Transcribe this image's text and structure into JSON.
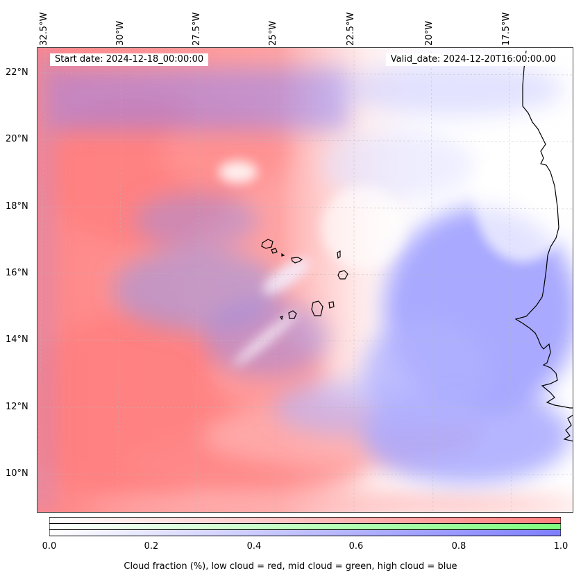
{
  "map": {
    "lon_labels": [
      "32.5°W",
      "30°W",
      "27.5°W",
      "25°W",
      "22.5°W",
      "20°W",
      "17.5°W"
    ],
    "lat_labels": [
      "22°N",
      "20°N",
      "18°N",
      "16°N",
      "14°N",
      "12°N",
      "10°N"
    ],
    "start_date": "Start date: 2024-12-18_00:00:00",
    "valid_date": "Valid_date: 2024-12-20T16:00:00.00",
    "colors": {
      "low_cloud": "#ff7f7f",
      "mid_cloud": "#7fff7f",
      "high_cloud": "#7f7fff",
      "coastline": "#000000"
    }
  },
  "colorbar": {
    "ticks": [
      "0.0",
      "0.2",
      "0.4",
      "0.6",
      "0.8",
      "1.0"
    ],
    "label": "Cloud fraction (%), low cloud = red, mid cloud = green, high cloud = blue"
  }
}
